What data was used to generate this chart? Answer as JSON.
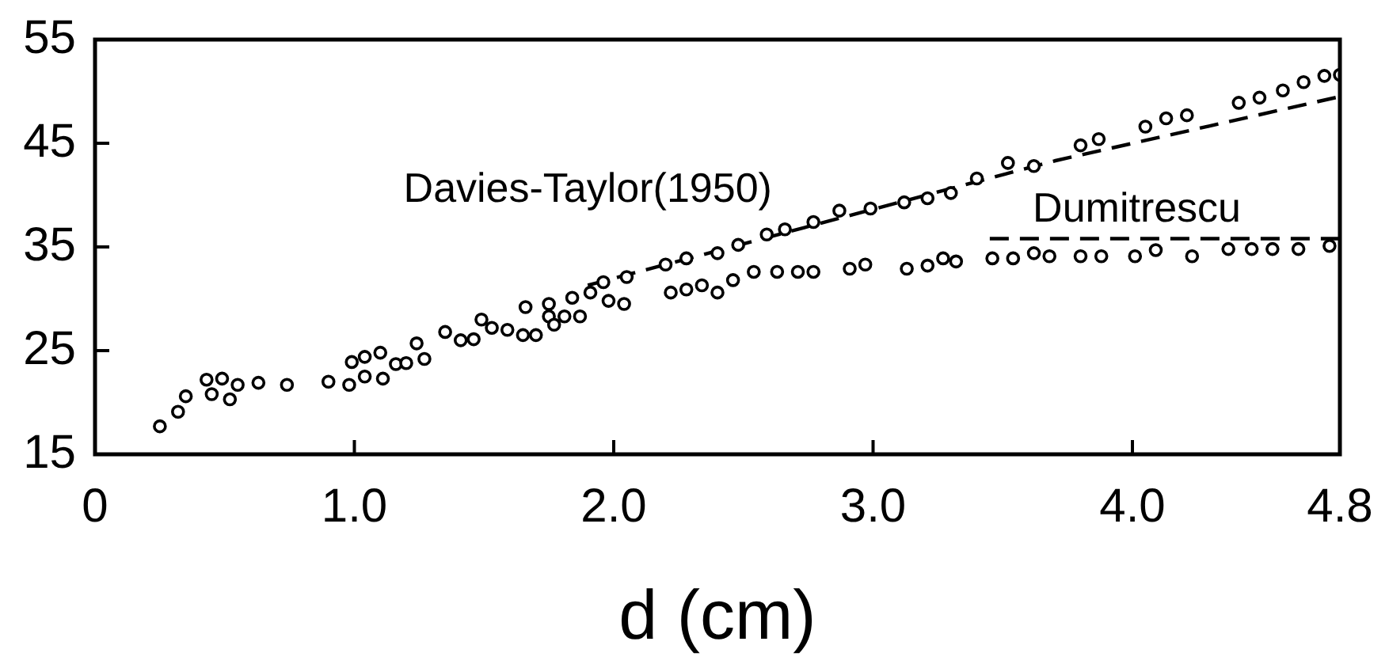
{
  "chart_data": {
    "type": "scatter",
    "xlabel": "d (cm)",
    "xlim": [
      0,
      4.8
    ],
    "xticks": [
      0,
      {
        "value": 1,
        "label": "1.0"
      },
      {
        "value": 2,
        "label": "2.0"
      },
      {
        "value": 3,
        "label": "3.0"
      },
      {
        "value": 4,
        "label": "4.0"
      },
      4.8
    ],
    "ylim": [
      15,
      55
    ],
    "yticks": [
      15,
      25,
      35,
      45,
      55
    ],
    "grid": false,
    "legend": false,
    "series": [
      {
        "marker": "circle",
        "color": "#000000",
        "x": [
          0.25,
          0.32,
          0.35,
          0.43,
          0.45,
          0.49,
          0.52,
          0.55,
          0.63,
          0.74,
          0.9,
          0.98,
          0.99,
          1.04,
          1.04,
          1.1,
          1.11,
          1.16,
          1.2,
          1.24,
          1.27,
          1.35,
          1.41,
          1.46,
          1.53,
          1.59,
          1.65,
          1.7,
          1.75,
          1.77,
          1.81,
          1.87,
          1.98,
          2.04,
          2.22,
          2.28,
          2.34,
          2.4,
          2.46,
          2.54,
          2.63,
          2.71,
          2.77,
          2.91,
          2.97,
          3.13,
          3.21,
          3.27,
          3.32,
          3.46,
          3.54,
          3.62,
          3.68,
          3.8,
          3.88,
          4.01,
          4.09,
          4.23,
          4.37,
          4.46,
          4.54,
          4.64,
          4.76
        ],
        "values": [
          17.7,
          19.1,
          20.6,
          22.2,
          20.8,
          22.3,
          20.3,
          21.7,
          21.9,
          21.7,
          22,
          21.7,
          23.9,
          22.5,
          24.4,
          24.8,
          22.3,
          23.7,
          23.8,
          25.7,
          24.2,
          26.8,
          26,
          26.1,
          27.2,
          27,
          26.5,
          26.5,
          28.3,
          27.5,
          28.3,
          28.3,
          29.8,
          29.5,
          30.6,
          30.9,
          31.3,
          30.6,
          31.8,
          32.6,
          32.6,
          32.6,
          32.6,
          32.9,
          33.3,
          32.9,
          33.2,
          33.9,
          33.6,
          33.9,
          33.9,
          34.4,
          34.1,
          34.1,
          34.1,
          34.1,
          34.7,
          34.1,
          34.8,
          34.8,
          34.8,
          34.8,
          35.1
        ]
      },
      {
        "marker": "circle",
        "color": "#000000",
        "x": [
          1.49,
          1.66,
          1.75,
          1.84,
          1.91,
          1.96,
          2.05,
          2.2,
          2.28,
          2.4,
          2.48,
          2.59,
          2.66,
          2.77,
          2.87,
          2.99,
          3.12,
          3.21,
          3.3,
          3.4,
          3.52,
          3.62,
          3.8,
          3.87,
          4.05,
          4.13,
          4.21,
          4.41,
          4.49,
          4.58,
          4.66,
          4.74,
          4.8
        ],
        "values": [
          28,
          29.2,
          29.5,
          30.1,
          30.6,
          31.6,
          32.1,
          33.3,
          33.9,
          34.4,
          35.2,
          36.2,
          36.7,
          37.4,
          38.5,
          38.7,
          39.3,
          39.7,
          40.2,
          41.6,
          43.1,
          42.8,
          44.8,
          45.4,
          46.6,
          47.4,
          47.7,
          48.9,
          49.4,
          50.1,
          50.9,
          51.5,
          51.6
        ]
      },
      {
        "type": "line",
        "name": "Davies-Taylor(1950)",
        "marker": "none",
        "line_style": "dashed",
        "color": "#000000",
        "x": [
          1.9,
          3.7,
          4.8
        ],
        "values": [
          31.3,
          43.3,
          49.5
        ]
      },
      {
        "type": "line",
        "name": "Dumitrescu",
        "marker": "none",
        "line_style": "dashed",
        "color": "#000000",
        "x": [
          3.45,
          4.8
        ],
        "values": [
          35.8,
          35.8
        ]
      }
    ]
  }
}
